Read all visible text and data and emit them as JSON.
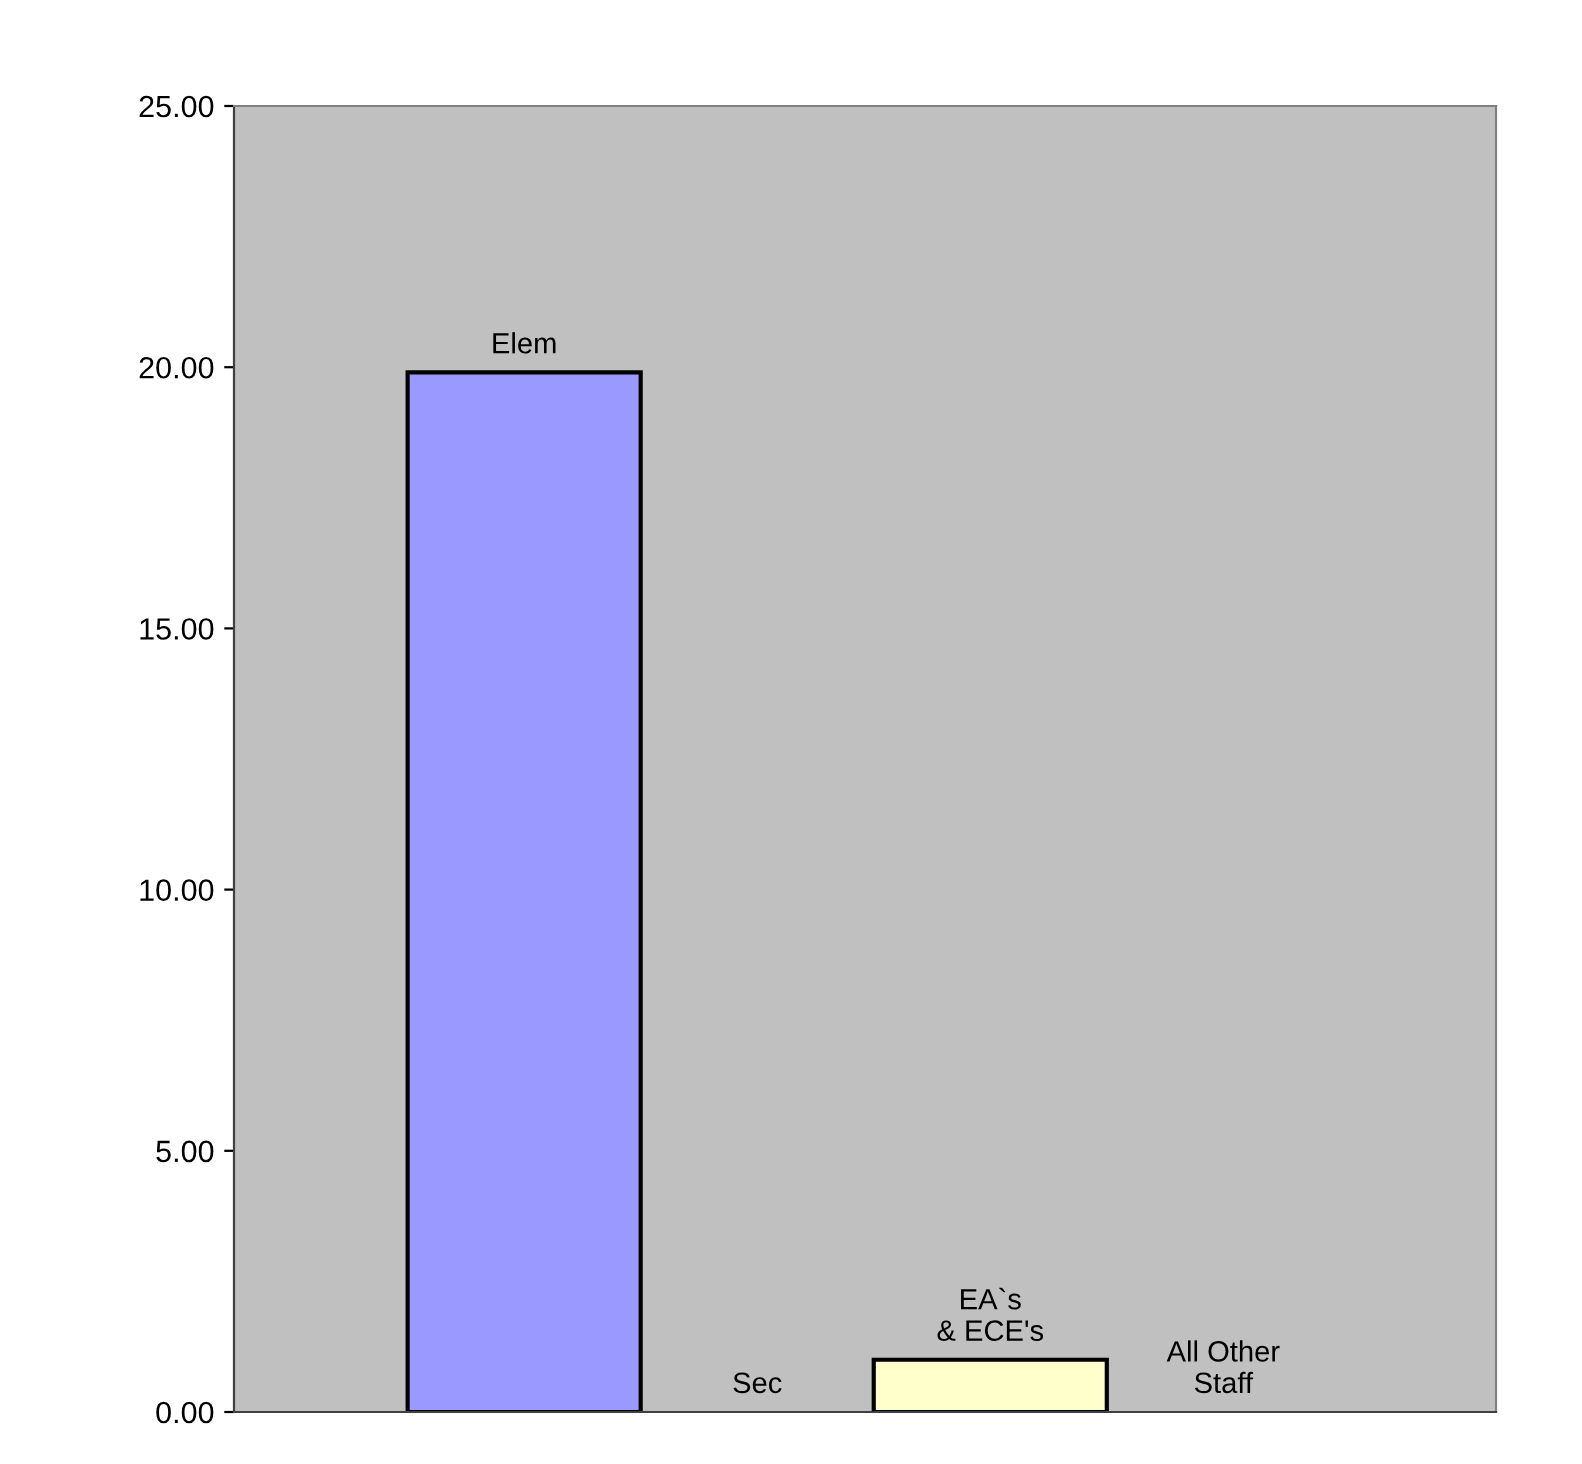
{
  "chart_data": {
    "type": "bar",
    "categories": [
      "Elem",
      "Sec",
      "EA`s\n& ECE's",
      "All Other\nStaff"
    ],
    "values": [
      19.9,
      0,
      1.0,
      0
    ],
    "colors": [
      "#9999ff",
      null,
      "#ffffcc",
      null
    ],
    "ylim": [
      0,
      25
    ],
    "yticks": [
      {
        "value": 0,
        "label": "0.00"
      },
      {
        "value": 5,
        "label": "5.00"
      },
      {
        "value": 10,
        "label": "10.00"
      },
      {
        "value": 15,
        "label": "15.00"
      },
      {
        "value": 20,
        "label": "20.00"
      },
      {
        "value": 25,
        "label": "25.00"
      }
    ],
    "grid": false
  }
}
